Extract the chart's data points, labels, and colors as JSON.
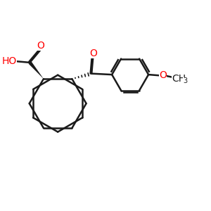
{
  "background_color": "#ffffff",
  "bond_color": "#1a1a1a",
  "heteroatom_color": "#ff0000",
  "text_color": "#1a1a1a",
  "figsize": [
    3.0,
    3.0
  ],
  "dpi": 100,
  "xlim": [
    0,
    10
  ],
  "ylim": [
    0,
    10
  ]
}
